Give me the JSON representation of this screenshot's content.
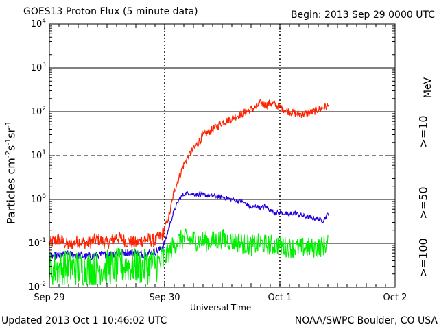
{
  "header": {
    "title": "GOES13 Proton Flux (5 minute data)",
    "begin": "Begin: 2013 Sep 29 0000 UTC"
  },
  "footer": {
    "updated": "Updated 2013 Oct  1 10:46:02 UTC",
    "credit": "NOAA/SWPC Boulder, CO USA"
  },
  "chart_data": {
    "type": "line",
    "title": "GOES13 Proton Flux (5 minute data)",
    "xlabel": "Universal Time",
    "ylabel": "Particles cm-2s-1sr-1",
    "ylabel_parts": {
      "base": "Particles cm",
      "e1": "-2",
      "mid1": "s",
      "e2": "-1",
      "mid2": "sr",
      "e3": "-1"
    },
    "y_scale": "log",
    "ylim_exponent": [
      -2,
      4
    ],
    "y_tick_exponents": [
      -2,
      -1,
      0,
      1,
      2,
      3,
      4
    ],
    "xlim_hours": [
      0,
      72
    ],
    "x_ticks": [
      {
        "hour": 0,
        "label": "Sep 29"
      },
      {
        "hour": 24,
        "label": "Sep 30"
      },
      {
        "hour": 48,
        "label": "Oct 1"
      },
      {
        "hour": 72,
        "label": "Oct 2"
      }
    ],
    "dashed_gridline_exponent": 1,
    "legend_placement": "right",
    "series": [
      {
        "name": ">=10 MeV",
        "label": ">=10",
        "unit": "MeV",
        "color": "#ff2200",
        "x_hours": [
          0,
          2,
          4,
          6,
          8,
          10,
          12,
          14,
          16,
          18,
          20,
          22,
          23.5,
          24.2,
          25,
          26,
          27,
          28,
          29,
          30,
          31,
          32,
          34,
          36,
          38,
          40,
          41,
          42,
          43,
          44,
          45,
          46,
          47,
          48,
          49,
          50,
          51,
          52,
          53,
          54,
          55,
          56,
          57,
          58.2
        ],
        "log10_values": [
          -1.0,
          -0.9,
          -1.05,
          -0.95,
          -1.0,
          -0.9,
          -1.0,
          -0.85,
          -0.95,
          -1.0,
          -0.9,
          -0.95,
          -0.8,
          -0.6,
          -0.35,
          0.2,
          0.5,
          0.8,
          1.0,
          1.15,
          1.3,
          1.45,
          1.6,
          1.75,
          1.85,
          1.95,
          2.0,
          2.05,
          2.1,
          2.2,
          2.15,
          2.2,
          2.15,
          2.1,
          2.05,
          2.0,
          1.97,
          1.95,
          1.95,
          1.97,
          2.0,
          2.05,
          2.1,
          2.12
        ],
        "noise": 0.12
      },
      {
        "name": ">=50 MeV",
        "label": ">=50",
        "color": "#2200dd",
        "x_hours": [
          0,
          4,
          8,
          12,
          16,
          20,
          23,
          24,
          25,
          26,
          27,
          28,
          29,
          30,
          32,
          34,
          36,
          38,
          40,
          41,
          42,
          43,
          44,
          45,
          46,
          47,
          48,
          49,
          50,
          51,
          52,
          53,
          54,
          55,
          56,
          57,
          58.2
        ],
        "log10_values": [
          -1.3,
          -1.25,
          -1.3,
          -1.25,
          -1.2,
          -1.25,
          -1.15,
          -1.0,
          -0.6,
          -0.25,
          0.0,
          0.12,
          0.15,
          0.12,
          0.1,
          0.08,
          0.05,
          0.0,
          -0.05,
          -0.1,
          -0.2,
          -0.15,
          -0.2,
          -0.15,
          -0.25,
          -0.3,
          -0.3,
          -0.32,
          -0.35,
          -0.3,
          -0.35,
          -0.38,
          -0.4,
          -0.42,
          -0.45,
          -0.48,
          -0.3
        ],
        "noise": 0.07
      },
      {
        "name": ">=100 MeV",
        "label": ">=100",
        "color": "#00ee00",
        "x_hours": [
          0,
          4,
          8,
          12,
          16,
          20,
          23,
          24,
          25,
          26,
          27,
          28,
          30,
          32,
          34,
          36,
          38,
          40,
          42,
          44,
          46,
          48,
          50,
          52,
          54,
          56,
          58.2
        ],
        "log10_values": [
          -1.6,
          -1.55,
          -1.6,
          -1.55,
          -1.5,
          -1.55,
          -1.45,
          -1.35,
          -1.2,
          -1.0,
          -0.95,
          -0.9,
          -0.92,
          -0.95,
          -0.95,
          -0.9,
          -0.95,
          -1.0,
          -1.05,
          -1.0,
          -1.05,
          -1.05,
          -1.1,
          -1.1,
          -1.1,
          -1.1,
          -1.0
        ],
        "noise": 0.32
      }
    ]
  }
}
